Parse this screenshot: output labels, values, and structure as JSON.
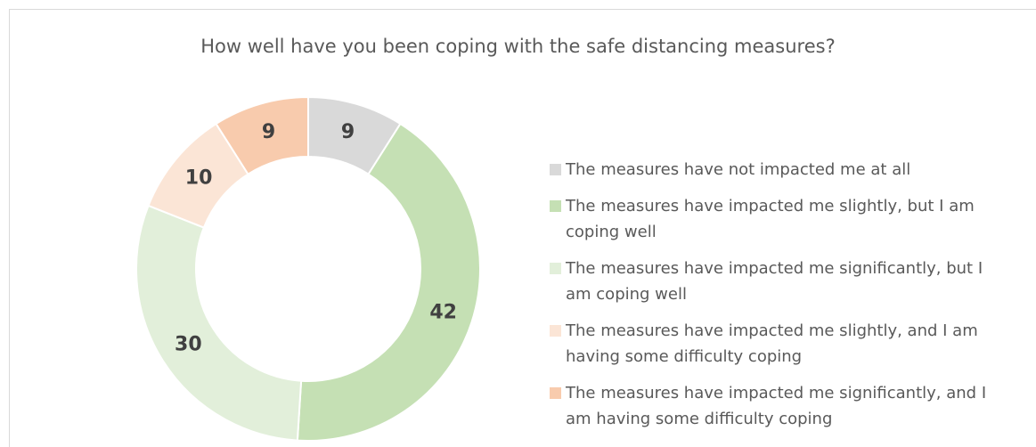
{
  "chart_data": {
    "type": "donut",
    "title": "How well have you been coping with the safe distancing measures?",
    "categories": [
      "The measures have not impacted me at all",
      "The measures have impacted me slightly, but I am coping well",
      "The measures have impacted me significantly, but I am coping well",
      "The measures have impacted me slightly, and I am having some difficulty coping",
      "The measures have impacted me significantly, and I am having some difficulty coping"
    ],
    "values": [
      9,
      42,
      30,
      10,
      9
    ],
    "colors": [
      "#d9d9d9",
      "#c5e0b4",
      "#e2efda",
      "#fbe5d6",
      "#f8cbad"
    ],
    "legend": "right"
  }
}
